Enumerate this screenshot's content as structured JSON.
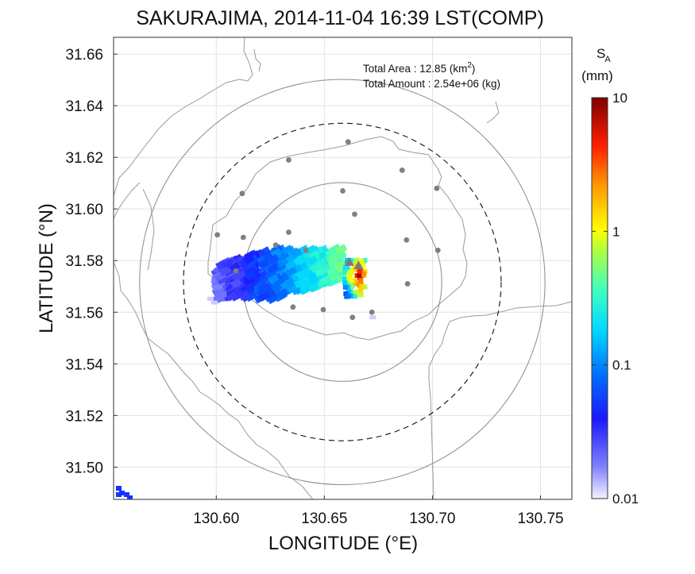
{
  "chart_data": {
    "type": "heatmap",
    "title": "SAKURAJIMA, 2014-11-04 16:39 LST(COMP)",
    "xlabel": "LONGITUDE (°E)",
    "ylabel": "LATITUDE (°N)",
    "xlim": [
      130.5525,
      130.7645
    ],
    "ylim": [
      31.4875,
      31.6665
    ],
    "xticks": [
      130.6,
      130.65,
      130.7,
      130.75
    ],
    "xtick_labels": [
      "130.60",
      "130.65",
      "130.70",
      "130.75"
    ],
    "yticks": [
      31.5,
      31.52,
      31.54,
      31.56,
      31.58,
      31.6,
      31.62,
      31.64,
      31.66
    ],
    "ytick_labels": [
      "31.50",
      "31.52",
      "31.54",
      "31.56",
      "31.58",
      "31.60",
      "31.62",
      "31.64",
      "31.66"
    ],
    "grid": true,
    "annotations": [
      {
        "label": "Total Area   : 12.85 (km",
        "sup": "2",
        "tail": ")"
      },
      {
        "label": "Total Amount : 2.54e+06 (kg)"
      }
    ],
    "colorbar": {
      "label_main": "S",
      "label_sub": "A",
      "unit": "(mm)",
      "scale": "log",
      "range": [
        0.01,
        10
      ],
      "ticks": [
        0.01,
        0.1,
        1,
        10
      ],
      "tick_labels": [
        "0.01",
        "0.1",
        "1",
        "10"
      ]
    },
    "range_rings": [
      {
        "center": [
          130.6583,
          31.5717
        ],
        "radius_deg_lat": 0.0385,
        "style": "solid-gray"
      },
      {
        "center": [
          130.6583,
          31.5717
        ],
        "radius_deg_lat": 0.0785,
        "style": "solid-gray"
      },
      {
        "center": [
          130.6583,
          31.5717
        ],
        "radius_deg_lat": 0.0615,
        "style": "dashed-black"
      }
    ],
    "vents": [
      [
        130.6615,
        31.5795
      ],
      [
        130.6658,
        31.5782
      ]
    ],
    "stations": [
      [
        130.661,
        31.626
      ],
      [
        130.6335,
        31.619
      ],
      [
        130.686,
        31.615
      ],
      [
        130.6585,
        31.607
      ],
      [
        130.612,
        31.606
      ],
      [
        130.702,
        31.608
      ],
      [
        130.664,
        31.598
      ],
      [
        130.6005,
        31.59
      ],
      [
        130.6125,
        31.589
      ],
      [
        130.6335,
        31.591
      ],
      [
        130.609,
        31.576
      ],
      [
        130.6275,
        31.586
      ],
      [
        130.6415,
        31.584
      ],
      [
        130.688,
        31.588
      ],
      [
        130.7025,
        31.584
      ],
      [
        130.6885,
        31.571
      ],
      [
        130.6355,
        31.562
      ],
      [
        130.6495,
        31.561
      ],
      [
        130.663,
        31.558
      ],
      [
        130.672,
        31.56
      ]
    ],
    "ash_plume": {
      "axis_start": [
        130.6,
        31.5735
      ],
      "axis_end": [
        130.658,
        31.5745
      ],
      "scatter_near_vent": [
        130.6645,
        31.5735
      ],
      "max_value_mm": 10,
      "min_value_mm": 0.01
    }
  }
}
